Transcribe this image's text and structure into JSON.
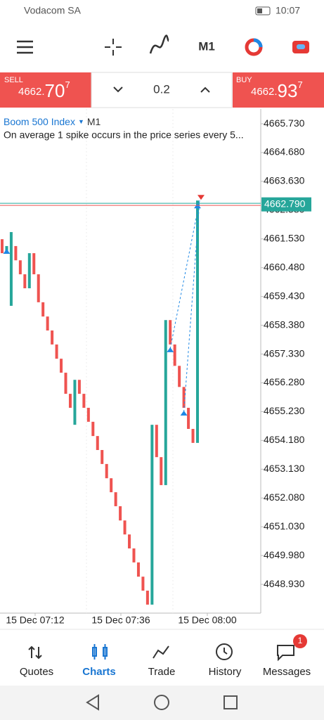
{
  "status_bar": {
    "carrier": "Vodacom SA",
    "time": "10:07"
  },
  "toolbar": {
    "timeframe": "M1"
  },
  "trade_bar": {
    "sell": {
      "label": "SELL",
      "price_prefix": "4662.",
      "price_main": "70",
      "price_sup": "7"
    },
    "lot": "0.2",
    "buy": {
      "label": "BUY",
      "price_prefix": "4662.",
      "price_main": "93",
      "price_sup": "7"
    }
  },
  "chart": {
    "symbol": "Boom 500 Index",
    "timeframe": "M1",
    "description": "On average 1 spike occurs in the price series every 5...",
    "ylim": [
      4647.88,
      4666.27
    ],
    "yticks": [
      {
        "value": 4665.73,
        "label": "4665.730"
      },
      {
        "value": 4664.68,
        "label": "4664.680"
      },
      {
        "value": 4663.63,
        "label": "4663.630"
      },
      {
        "value": 4662.58,
        "label": "4662.580"
      },
      {
        "value": 4661.53,
        "label": "4661.530"
      },
      {
        "value": 4660.48,
        "label": "4660.480"
      },
      {
        "value": 4659.43,
        "label": "4659.430"
      },
      {
        "value": 4658.38,
        "label": "4658.380"
      },
      {
        "value": 4657.33,
        "label": "4657.330"
      },
      {
        "value": 4656.28,
        "label": "4656.280"
      },
      {
        "value": 4655.23,
        "label": "4655.230"
      },
      {
        "value": 4654.18,
        "label": "4654.180"
      },
      {
        "value": 4653.13,
        "label": "4653.130"
      },
      {
        "value": 4652.08,
        "label": "4652.080"
      },
      {
        "value": 4651.03,
        "label": "4651.030"
      },
      {
        "value": 4649.98,
        "label": "4649.980"
      },
      {
        "value": 4648.93,
        "label": "4648.930"
      }
    ],
    "xticks": [
      "15 Dec 07:12",
      "15 Dec 07:36",
      "15 Dec 08:00"
    ],
    "current_price": {
      "value": 4662.79,
      "label": "4662.790"
    },
    "up_color": "#26a69a",
    "down_color": "#ef5350",
    "candles": [
      {
        "o": 4661.52,
        "c": 4661.01
      },
      {
        "o": 4661.01,
        "c": 4661.27
      },
      {
        "o": 4659.09,
        "c": 4661.78
      },
      {
        "o": 4661.27,
        "c": 4660.75
      },
      {
        "o": 4660.75,
        "c": 4660.24
      },
      {
        "o": 4660.24,
        "c": 4659.73
      },
      {
        "o": 4659.73,
        "c": 4661.01
      },
      {
        "o": 4661.01,
        "c": 4660.24
      },
      {
        "o": 4660.24,
        "c": 4659.22
      },
      {
        "o": 4659.22,
        "c": 4658.7
      },
      {
        "o": 4658.7,
        "c": 4658.19
      },
      {
        "o": 4658.19,
        "c": 4657.68
      },
      {
        "o": 4657.68,
        "c": 4657.16
      },
      {
        "o": 4657.16,
        "c": 4656.65
      },
      {
        "o": 4656.65,
        "c": 4655.88
      },
      {
        "o": 4655.88,
        "c": 4655.37
      },
      {
        "o": 4654.75,
        "c": 4656.39
      },
      {
        "o": 4656.39,
        "c": 4655.88
      },
      {
        "o": 4655.88,
        "c": 4655.37
      },
      {
        "o": 4655.37,
        "c": 4654.86
      },
      {
        "o": 4654.86,
        "c": 4654.34
      },
      {
        "o": 4654.34,
        "c": 4653.83
      },
      {
        "o": 4653.83,
        "c": 4653.32
      },
      {
        "o": 4653.32,
        "c": 4652.8
      },
      {
        "o": 4652.8,
        "c": 4652.29
      },
      {
        "o": 4652.29,
        "c": 4651.78
      },
      {
        "o": 4651.78,
        "c": 4651.26
      },
      {
        "o": 4651.26,
        "c": 4650.75
      },
      {
        "o": 4650.75,
        "c": 4650.24
      },
      {
        "o": 4650.24,
        "c": 4649.73
      },
      {
        "o": 4649.73,
        "c": 4649.21
      },
      {
        "o": 4649.21,
        "c": 4648.7
      },
      {
        "o": 4648.7,
        "c": 4648.19
      },
      {
        "o": 4648.19,
        "c": 4654.75
      },
      {
        "o": 4654.75,
        "c": 4653.57
      },
      {
        "o": 4653.57,
        "c": 4652.55
      },
      {
        "o": 4652.55,
        "c": 4658.57
      },
      {
        "o": 4658.57,
        "c": 4657.68
      },
      {
        "o": 4657.68,
        "c": 4656.9
      },
      {
        "o": 4656.9,
        "c": 4656.13
      },
      {
        "o": 4656.13,
        "c": 4655.37
      },
      {
        "o": 4655.37,
        "c": 4654.6
      },
      {
        "o": 4654.6,
        "c": 4654.09
      },
      {
        "o": 4654.09,
        "c": 4662.93
      }
    ]
  },
  "bottom_nav": {
    "tabs": [
      "Quotes",
      "Charts",
      "Trade",
      "History",
      "Messages"
    ],
    "badge": "1"
  }
}
